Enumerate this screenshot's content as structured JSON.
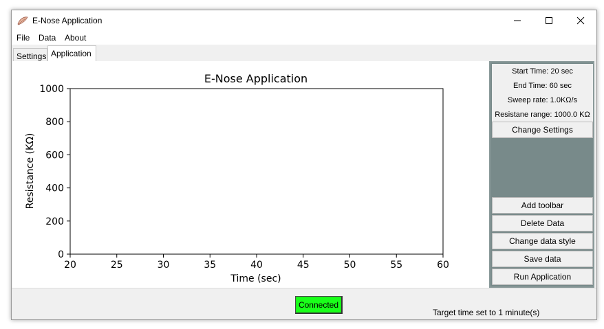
{
  "window": {
    "title": "E-Nose Application",
    "controls": {
      "minimize": "minimize",
      "maximize": "maximize",
      "close": "close"
    }
  },
  "menu": [
    {
      "label": "File"
    },
    {
      "label": "Data"
    },
    {
      "label": "About"
    }
  ],
  "tabs": [
    {
      "label": "Settings",
      "selected": false
    },
    {
      "label": "Application",
      "selected": true
    }
  ],
  "chart_data": {
    "type": "line",
    "title": "E-Nose Application",
    "xlabel": "Time (sec)",
    "ylabel": "Resistance (KΩ)",
    "xlim": [
      20,
      60
    ],
    "ylim": [
      0,
      1000
    ],
    "xticks": [
      20,
      25,
      30,
      35,
      40,
      45,
      50,
      55,
      60
    ],
    "yticks": [
      0,
      200,
      400,
      600,
      800,
      1000
    ],
    "series": [],
    "grid": false
  },
  "side_panel": {
    "info": [
      "Start Time: 20 sec",
      "End Time: 60 sec",
      "Sweep rate: 1.0KΩ/s",
      "Resistane range: 1000.0 KΩ"
    ],
    "change_settings_label": "Change Settings",
    "buttons": [
      {
        "name": "add-toolbar-button",
        "label": "Add toolbar"
      },
      {
        "name": "delete-data-button",
        "label": "Delete Data"
      },
      {
        "name": "change-data-style-button",
        "label": "Change data style"
      },
      {
        "name": "save-data-button",
        "label": "Save data"
      },
      {
        "name": "run-application-button",
        "label": "Run Application"
      }
    ]
  },
  "status": {
    "connection_label": "Connected",
    "connection_color": "#1aff1a",
    "message": "Target time set to 1 minute(s)"
  },
  "colors": {
    "panel_bg": "#788a8a",
    "window_bg": "#f0f0f0"
  }
}
